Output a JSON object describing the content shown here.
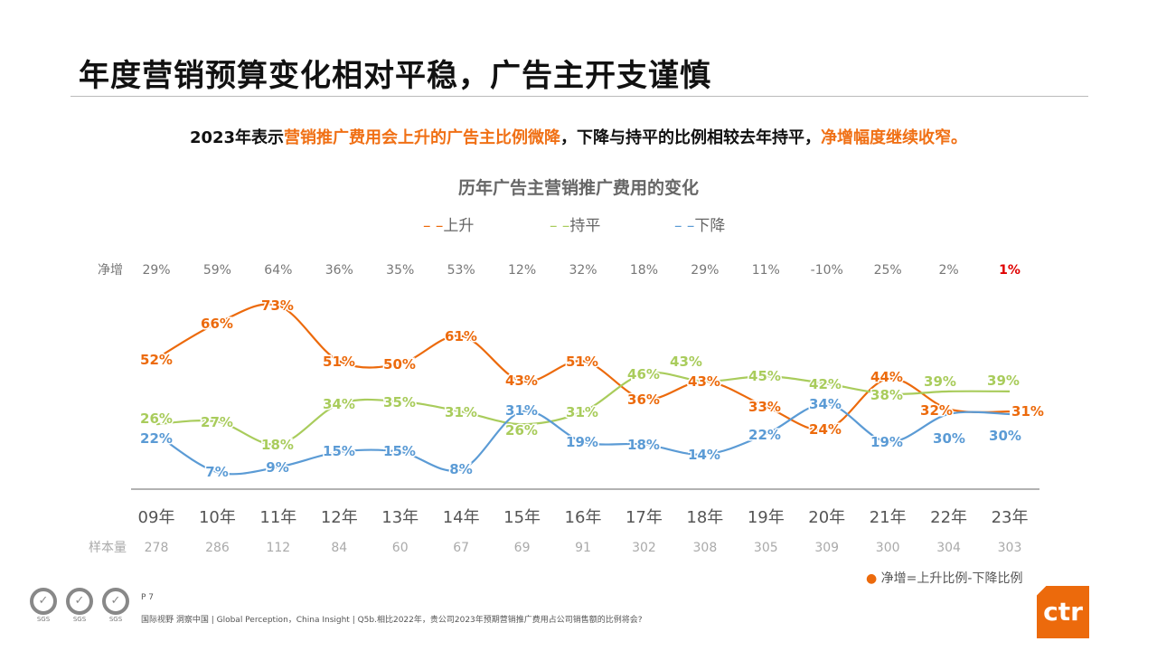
{
  "title": "年度营销预算变化相对平稳，广告主开支谨慎",
  "subtitle": {
    "p1": "2023年表示",
    "h1": "营销推广费用会上升的广告主比例微降",
    "p2": "，下降与持平的比例相较去年持平，",
    "h2": "净增幅度继续收窄。"
  },
  "chart_data": {
    "type": "line",
    "title": "历年广告主营销推广费用的变化",
    "categories": [
      "09年",
      "10年",
      "11年",
      "12年",
      "13年",
      "14年",
      "15年",
      "16年",
      "17年",
      "18年",
      "19年",
      "20年",
      "21年",
      "22年",
      "23年"
    ],
    "series": [
      {
        "name": "上升",
        "color": "#ec6a0c",
        "values": [
          52,
          66,
          73,
          51,
          50,
          61,
          43,
          51,
          36,
          43,
          33,
          24,
          44,
          32,
          31
        ]
      },
      {
        "name": "持平",
        "color": "#a9cc5c",
        "values": [
          26,
          27,
          18,
          34,
          35,
          31,
          26,
          31,
          46,
          43,
          45,
          42,
          38,
          39,
          39
        ]
      },
      {
        "name": "下降",
        "color": "#5b9bd5",
        "values": [
          22,
          7,
          9,
          15,
          15,
          8,
          31,
          19,
          18,
          14,
          22,
          34,
          19,
          30,
          30
        ]
      }
    ],
    "legend_prefix": "– –",
    "net_label": "净增",
    "net": [
      "29%",
      "59%",
      "64%",
      "36%",
      "35%",
      "53%",
      "12%",
      "32%",
      "18%",
      "29%",
      "11%",
      "-10%",
      "25%",
      "2%",
      "1%"
    ],
    "net_highlight_color": "#e00000",
    "sample_label": "样本量",
    "samples": [
      "278",
      "286",
      "112",
      "84",
      "60",
      "67",
      "69",
      "91",
      "302",
      "308",
      "305",
      "309",
      "300",
      "304",
      "303"
    ],
    "note": "净增=上升比例-下降比例",
    "legend_placement": "top"
  },
  "footer": {
    "page": "P 7",
    "source": "国际视野  洞察中国 |  Global Perception，China Insight | Q5b.相比2022年，贵公司2023年预期营销推广费用占公司销售额的比例将会?",
    "sgs": "SGS"
  },
  "logo": "ctr"
}
